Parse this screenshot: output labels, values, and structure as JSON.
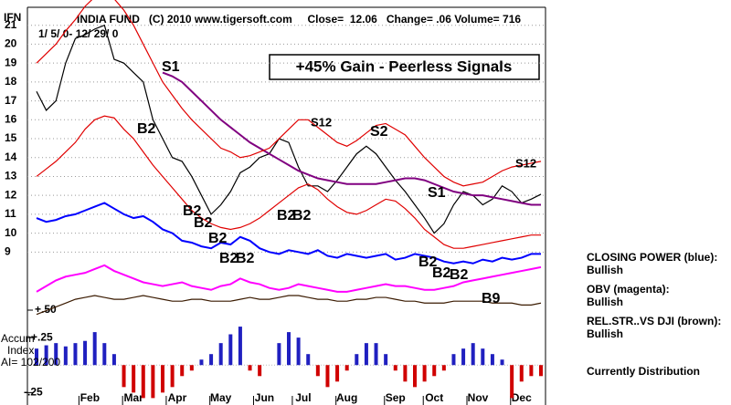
{
  "chart_data": {
    "type": "line",
    "ticker": "IFN",
    "title": "INDIA FUND   (C) 2010 www.tigersoft.com     Close=  12.06   Change= .06 Volume= 716",
    "subtitle": "1/ 5/ 0- 12/ 29/ 0",
    "banner": "+45% Gain - Peerless Signals",
    "signals": [
      "S1",
      "B2",
      "B2",
      "B2",
      "B2",
      "B2",
      "B2",
      "B2",
      "B2",
      "S12",
      "S2",
      "S1",
      "S12",
      "B2",
      "B2",
      "B2",
      "B9"
    ],
    "panel_labels": [
      "Accum",
      "Index",
      "AI= 102/200"
    ],
    "side_notes": [
      "CLOSING POWER (blue):",
      "Bullish",
      "OBV (magenta):",
      "Bullish",
      "REL.STR..VS DJI (brown):",
      "Bullish",
      "Currently Distribution"
    ],
    "xlim": [
      0,
      52
    ],
    "xticks": [
      {
        "value": 5.5,
        "label": "Feb"
      },
      {
        "value": 10,
        "label": "Mar"
      },
      {
        "value": 14.5,
        "label": "Apr"
      },
      {
        "value": 19,
        "label": "May"
      },
      {
        "value": 23.5,
        "label": "Jun"
      },
      {
        "value": 27.5,
        "label": "Jul"
      },
      {
        "value": 32,
        "label": "Aug"
      },
      {
        "value": 37,
        "label": "Sep"
      },
      {
        "value": 41,
        "label": "Oct"
      },
      {
        "value": 45.5,
        "label": "Nov"
      },
      {
        "value": 50,
        "label": "Dec"
      }
    ],
    "x": [
      0,
      1,
      2,
      3,
      4,
      5,
      6,
      7,
      8,
      9,
      10,
      11,
      12,
      13,
      14,
      15,
      16,
      17,
      18,
      19,
      20,
      21,
      22,
      23,
      24,
      25,
      26,
      27,
      28,
      29,
      30,
      31,
      32,
      33,
      34,
      35,
      36,
      37,
      38,
      39,
      40,
      41,
      42,
      43,
      44,
      45,
      46,
      47,
      48,
      49,
      50,
      51,
      52
    ],
    "ylim": [
      1.1,
      22
    ],
    "yticks": [
      9,
      10,
      11,
      12,
      13,
      14,
      15,
      16,
      17,
      18,
      19,
      20,
      21
    ],
    "y2lim": [
      -0.33,
      0.5
    ],
    "y2ticks": [
      {
        "value": 0.5,
        "label": "+.50"
      },
      {
        "value": 0.25,
        "label": "+.25"
      },
      {
        "value": -0.25,
        "label": "-.25"
      }
    ],
    "grid": true,
    "series": [
      {
        "color": "#000000",
        "values": [
          17.5,
          16.5,
          17,
          19,
          20.3,
          20.5,
          20.8,
          21,
          19.2,
          19,
          18.5,
          18,
          16,
          15,
          14,
          13.8,
          13,
          12,
          11,
          11.5,
          12.2,
          13.2,
          13.5,
          14,
          14.2,
          15,
          14.8,
          13.5,
          12.5,
          12.5,
          12.2,
          12.8,
          13.5,
          14.2,
          14.6,
          14.2,
          13.5,
          12.8,
          12.2,
          11.5,
          10.8,
          10,
          10.5,
          11.5,
          12.2,
          12,
          11.5,
          11.8,
          12.5,
          12.2,
          11.6,
          11.8,
          12.06
        ]
      },
      {
        "color": "#800080",
        "values": [
          null,
          null,
          null,
          null,
          null,
          null,
          null,
          null,
          null,
          null,
          null,
          null,
          null,
          18.5,
          18.3,
          18,
          17.5,
          17,
          16.5,
          16,
          15.6,
          15.2,
          14.8,
          14.5,
          14.2,
          13.9,
          13.6,
          13.3,
          13.1,
          12.9,
          12.8,
          12.7,
          12.6,
          12.6,
          12.6,
          12.6,
          12.7,
          12.8,
          12.9,
          12.9,
          12.8,
          12.6,
          12.4,
          12.2,
          12.1,
          12.0,
          12.0,
          11.9,
          11.8,
          11.7,
          11.6,
          11.5,
          11.5
        ]
      },
      {
        "color": "#e00000",
        "values": [
          19,
          19.5,
          20,
          20.7,
          21.3,
          22,
          22.5,
          22.6,
          22.4,
          21.8,
          21,
          20,
          19,
          18,
          17.3,
          16.6,
          16,
          15.5,
          15,
          14.5,
          14.3,
          14,
          14.1,
          14.3,
          14.5,
          15,
          15.5,
          16,
          16,
          15.6,
          15.2,
          14.8,
          14.6,
          14.9,
          15.3,
          15.7,
          15.8,
          15.5,
          15.2,
          14.6,
          14,
          13.5,
          13,
          12.7,
          12.5,
          12.6,
          12.7,
          13,
          13.3,
          13.5,
          13.6,
          13.7,
          13.8
        ]
      },
      {
        "color": "#e00000",
        "values": [
          13,
          13.4,
          13.8,
          14.3,
          14.8,
          15.5,
          16,
          16.2,
          16.1,
          15.5,
          15,
          14.3,
          13.6,
          13,
          12.4,
          11.8,
          11.2,
          10.8,
          10.5,
          10.3,
          10.2,
          10.3,
          10.5,
          10.8,
          11.2,
          11.6,
          12,
          12.4,
          12.6,
          12.3,
          11.8,
          11.4,
          11.1,
          11,
          11.2,
          11.5,
          11.8,
          11.7,
          11.3,
          10.8,
          10.2,
          9.8,
          9.4,
          9.2,
          9.2,
          9.3,
          9.4,
          9.5,
          9.6,
          9.7,
          9.8,
          9.9,
          9.9
        ]
      },
      {
        "color": "#0000ff",
        "values": [
          10.8,
          10.6,
          10.7,
          10.9,
          11,
          11.2,
          11.4,
          11.6,
          11.3,
          11,
          10.8,
          10.9,
          10.6,
          10.2,
          10,
          9.6,
          9.5,
          9.3,
          9.2,
          9.5,
          9.4,
          9.8,
          9.6,
          9.2,
          9,
          8.9,
          9.1,
          9,
          8.9,
          9.1,
          8.8,
          8.7,
          8.9,
          8.8,
          8.7,
          8.8,
          8.9,
          8.6,
          8.7,
          8.9,
          8.8,
          8.7,
          8.5,
          8.4,
          8.5,
          8.4,
          8.6,
          8.5,
          8.7,
          8.6,
          8.7,
          8.9,
          8.9
        ]
      },
      {
        "color": "#ff00ff",
        "values": [
          6.9,
          7.2,
          7.5,
          7.7,
          7.8,
          7.9,
          8.1,
          8.3,
          8.0,
          7.8,
          7.6,
          7.4,
          7.3,
          7.2,
          7.3,
          7.4,
          7.2,
          7.1,
          7.0,
          7.2,
          7.3,
          7.6,
          7.4,
          7.3,
          7.1,
          7.0,
          7.1,
          7.3,
          7.2,
          7.1,
          7.0,
          6.9,
          6.9,
          7.0,
          7.1,
          7.2,
          7.3,
          7.2,
          7.2,
          7.1,
          7.0,
          7.0,
          7.1,
          7.2,
          7.4,
          7.5,
          7.6,
          7.7,
          7.8,
          7.9,
          8.0,
          8.1,
          8.2
        ]
      },
      {
        "color": "#3a1a00",
        "values": [
          5.7,
          5.9,
          6.1,
          6.3,
          6.5,
          6.6,
          6.7,
          6.6,
          6.5,
          6.5,
          6.6,
          6.7,
          6.6,
          6.5,
          6.4,
          6.4,
          6.5,
          6.5,
          6.4,
          6.4,
          6.4,
          6.5,
          6.6,
          6.5,
          6.5,
          6.6,
          6.7,
          6.7,
          6.6,
          6.5,
          6.5,
          6.4,
          6.4,
          6.5,
          6.5,
          6.6,
          6.6,
          6.5,
          6.4,
          6.4,
          6.3,
          6.3,
          6.3,
          6.4,
          6.4,
          6.4,
          6.4,
          6.3,
          6.3,
          6.3,
          6.2,
          6.2,
          6.3
        ]
      },
      {
        "kind": "bar",
        "axis": "y2",
        "color": "#2020c0",
        "neg_color": "#d00000",
        "values": [
          0.15,
          0.18,
          0.2,
          0.17,
          0.2,
          0.22,
          0.3,
          0.2,
          0.1,
          -0.2,
          -0.25,
          -0.3,
          -0.3,
          -0.25,
          -0.2,
          -0.1,
          -0.05,
          0.05,
          0.1,
          0.2,
          0.28,
          0.35,
          -0.05,
          -0.1,
          0,
          0.2,
          0.3,
          0.25,
          0.1,
          -0.1,
          -0.2,
          -0.15,
          -0.05,
          0.1,
          0.2,
          0.2,
          0.1,
          -0.05,
          -0.15,
          -0.2,
          -0.15,
          -0.1,
          -0.05,
          0.1,
          0.15,
          0.2,
          0.15,
          0.1,
          0.05,
          -0.3,
          -0.15,
          -0.1,
          -0.1
        ]
      }
    ]
  }
}
